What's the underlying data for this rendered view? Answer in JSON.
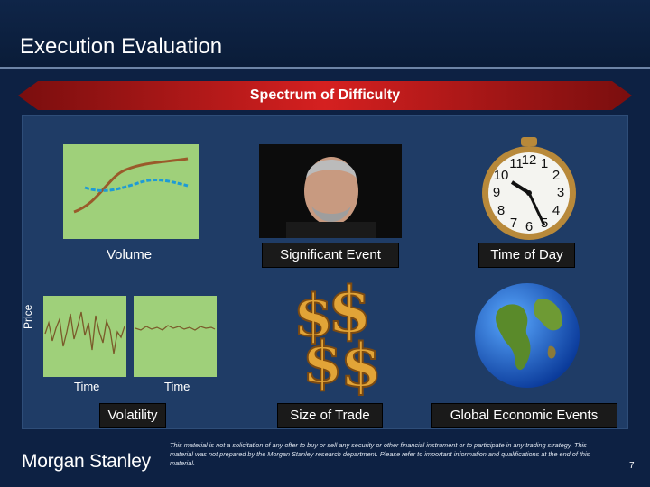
{
  "slide": {
    "title": "Execution Evaluation",
    "banner": "Spectrum of Difficulty",
    "cells": {
      "volume": "Volume",
      "significant_event": "Significant Event",
      "time_of_day": "Time of Day",
      "volatility": "Volatility",
      "size_of_trade": "Size of Trade",
      "global_events": "Global Economic Events"
    },
    "axis": {
      "price": "Price",
      "time_left": "Time",
      "time_right": "Time"
    },
    "clock_numbers": [
      "11",
      "12",
      "1",
      "2",
      "3",
      "4",
      "5",
      "6",
      "7",
      "8",
      "9",
      "10"
    ],
    "footer": {
      "logo": "Morgan Stanley",
      "disclaimer": "This material is not a solicitation of any offer to buy or sell any security or other financial instrument or to participate in any trading strategy. This material was not prepared by the Morgan Stanley research department. Please refer to important information and qualifications at the end of this material.",
      "page": "7"
    }
  },
  "colors": {
    "background": "#0d2143",
    "panel": "#1f3c66",
    "banner_red": "#c41a1a",
    "chart_green": "#9fd07a",
    "line_brown": "#9a5a2a",
    "line_blue": "#1e9bd6"
  }
}
